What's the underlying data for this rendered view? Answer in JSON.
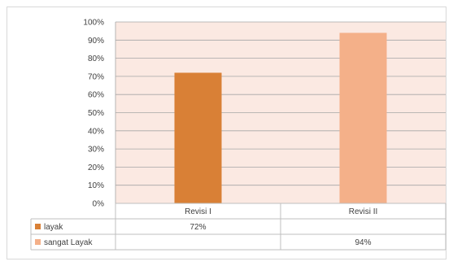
{
  "chart_data": {
    "type": "bar",
    "title": "",
    "xlabel": "",
    "ylabel": "",
    "categories": [
      "Revisi I",
      "Revisi II"
    ],
    "ylim": [
      0,
      100
    ],
    "y_ticks": [
      "0%",
      "10%",
      "20%",
      "30%",
      "40%",
      "50%",
      "60%",
      "70%",
      "80%",
      "90%",
      "100%"
    ],
    "grid": true,
    "legend": "data-table-left",
    "series": [
      {
        "name": "layak",
        "values": [
          72,
          null
        ],
        "color": "#d98036",
        "labels": [
          "72%",
          ""
        ]
      },
      {
        "name": "sangat Layak",
        "values": [
          null,
          94
        ],
        "color": "#f4b089",
        "labels": [
          "",
          "94%"
        ]
      }
    ],
    "plot_background": "#fbe9e2"
  }
}
